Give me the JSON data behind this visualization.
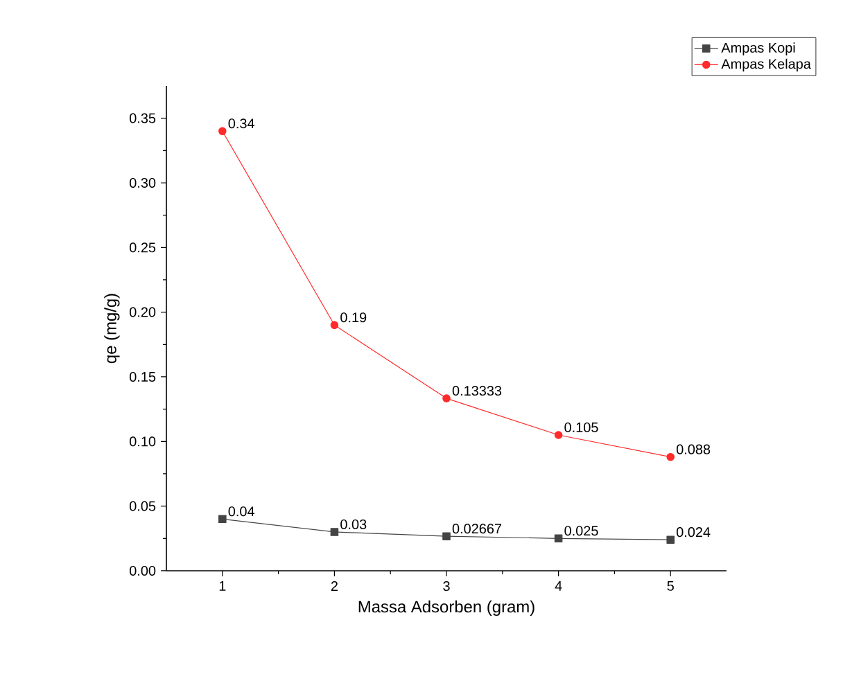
{
  "chart_data": {
    "type": "line",
    "xlabel": "Massa Adsorben (gram)",
    "ylabel": "qe (mg/g)",
    "x": [
      1,
      2,
      3,
      4,
      5
    ],
    "series": [
      {
        "name": "Ampas Kopi",
        "color": "#444444",
        "marker": "square",
        "values": [
          0.04,
          0.03,
          0.02667,
          0.025,
          0.024
        ]
      },
      {
        "name": "Ampas Kelapa",
        "color": "#ff2a2a",
        "marker": "circle",
        "values": [
          0.34,
          0.19,
          0.13333,
          0.105,
          0.088
        ]
      }
    ],
    "xlim": [
      0.5,
      5.5
    ],
    "ylim": [
      0,
      0.375
    ],
    "xticks": [
      1,
      2,
      3,
      4,
      5
    ],
    "yticks": [
      {
        "value": 0,
        "label": "0.00"
      },
      {
        "value": 0.05,
        "label": "0.05"
      },
      {
        "value": 0.1,
        "label": "0.10"
      },
      {
        "value": 0.15,
        "label": "0.15"
      },
      {
        "value": 0.2,
        "label": "0.20"
      },
      {
        "value": 0.25,
        "label": "0.25"
      },
      {
        "value": 0.3,
        "label": "0.30"
      },
      {
        "value": 0.35,
        "label": "0.35"
      }
    ],
    "grid": false,
    "legend": "top right",
    "data_labels": true,
    "line_style": "solid"
  }
}
